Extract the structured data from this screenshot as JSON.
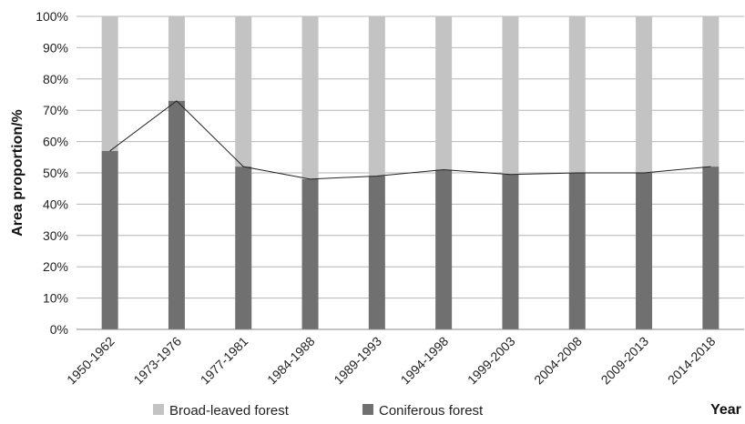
{
  "chart_data": {
    "type": "bar",
    "stacked": true,
    "percent_stacked": true,
    "ylabel": "Area proportion/%",
    "xlabel": "Year",
    "ylim": [
      0,
      100
    ],
    "yticks": [
      "0%",
      "10%",
      "20%",
      "30%",
      "40%",
      "50%",
      "60%",
      "70%",
      "80%",
      "90%",
      "100%"
    ],
    "grid": true,
    "legend_position": "bottom",
    "categories": [
      "1950-1962",
      "1973-1976",
      "1977-1981",
      "1984-1988",
      "1989-1993",
      "1994-1998",
      "1999-2003",
      "2004-2008",
      "2009-2013",
      "2014-2018"
    ],
    "series": [
      {
        "name": "Coniferous forest",
        "color": "#707070",
        "values": [
          57,
          73,
          52,
          48,
          49,
          51,
          49.5,
          50,
          50,
          52
        ]
      },
      {
        "name": "Broad-leaved forest",
        "color": "#c3c3c3",
        "values": [
          43,
          27,
          48,
          52,
          51,
          49,
          50.5,
          50,
          50,
          48
        ]
      }
    ],
    "trend_line": {
      "series": "Coniferous forest",
      "color": "#222222"
    }
  }
}
